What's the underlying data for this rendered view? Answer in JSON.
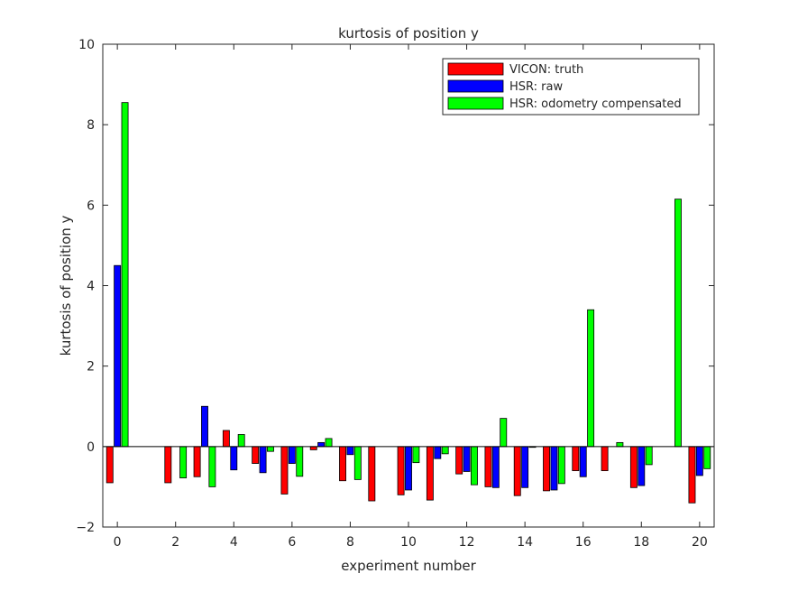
{
  "chart_data": {
    "type": "bar",
    "title": "kurtosis of position y",
    "xlabel": "experiment number",
    "ylabel": "kurtosis of position y",
    "xlim": [
      -0.5,
      20.5
    ],
    "ylim": [
      -2,
      10
    ],
    "xticks": [
      0,
      2,
      4,
      6,
      8,
      10,
      12,
      14,
      16,
      18,
      20
    ],
    "yticks": [
      -2,
      0,
      2,
      4,
      6,
      8,
      10
    ],
    "grid": false,
    "legend_position": "top-right",
    "x": [
      0,
      1,
      2,
      3,
      4,
      5,
      6,
      7,
      8,
      9,
      10,
      11,
      12,
      13,
      14,
      15,
      16,
      17,
      18,
      19,
      20
    ],
    "series": [
      {
        "name": "VICON: truth",
        "color": "#ff0000",
        "values": [
          -0.9,
          0,
          -0.9,
          -0.75,
          0.4,
          -0.42,
          -1.18,
          -0.08,
          -0.85,
          -1.35,
          -1.2,
          -1.33,
          -0.68,
          -1.0,
          -1.22,
          -1.1,
          -0.6,
          -0.6,
          -1.02,
          0,
          -1.4
        ]
      },
      {
        "name": "HSR: raw",
        "color": "#0000ff",
        "values": [
          4.5,
          0,
          0,
          1.0,
          -0.58,
          -0.65,
          -0.42,
          0.1,
          -0.2,
          0,
          -1.08,
          -0.3,
          -0.62,
          -1.02,
          -1.02,
          -1.08,
          -0.75,
          0,
          -0.97,
          0,
          -0.72
        ]
      },
      {
        "name": "HSR: odometry compensated",
        "color": "#00ff00",
        "values": [
          8.55,
          0,
          -0.78,
          -1.0,
          0.3,
          -0.12,
          -0.74,
          0.2,
          -0.82,
          0,
          -0.4,
          -0.18,
          -0.95,
          0.7,
          -0.02,
          -0.92,
          3.4,
          0.1,
          -0.45,
          6.15,
          -0.55
        ]
      }
    ]
  }
}
